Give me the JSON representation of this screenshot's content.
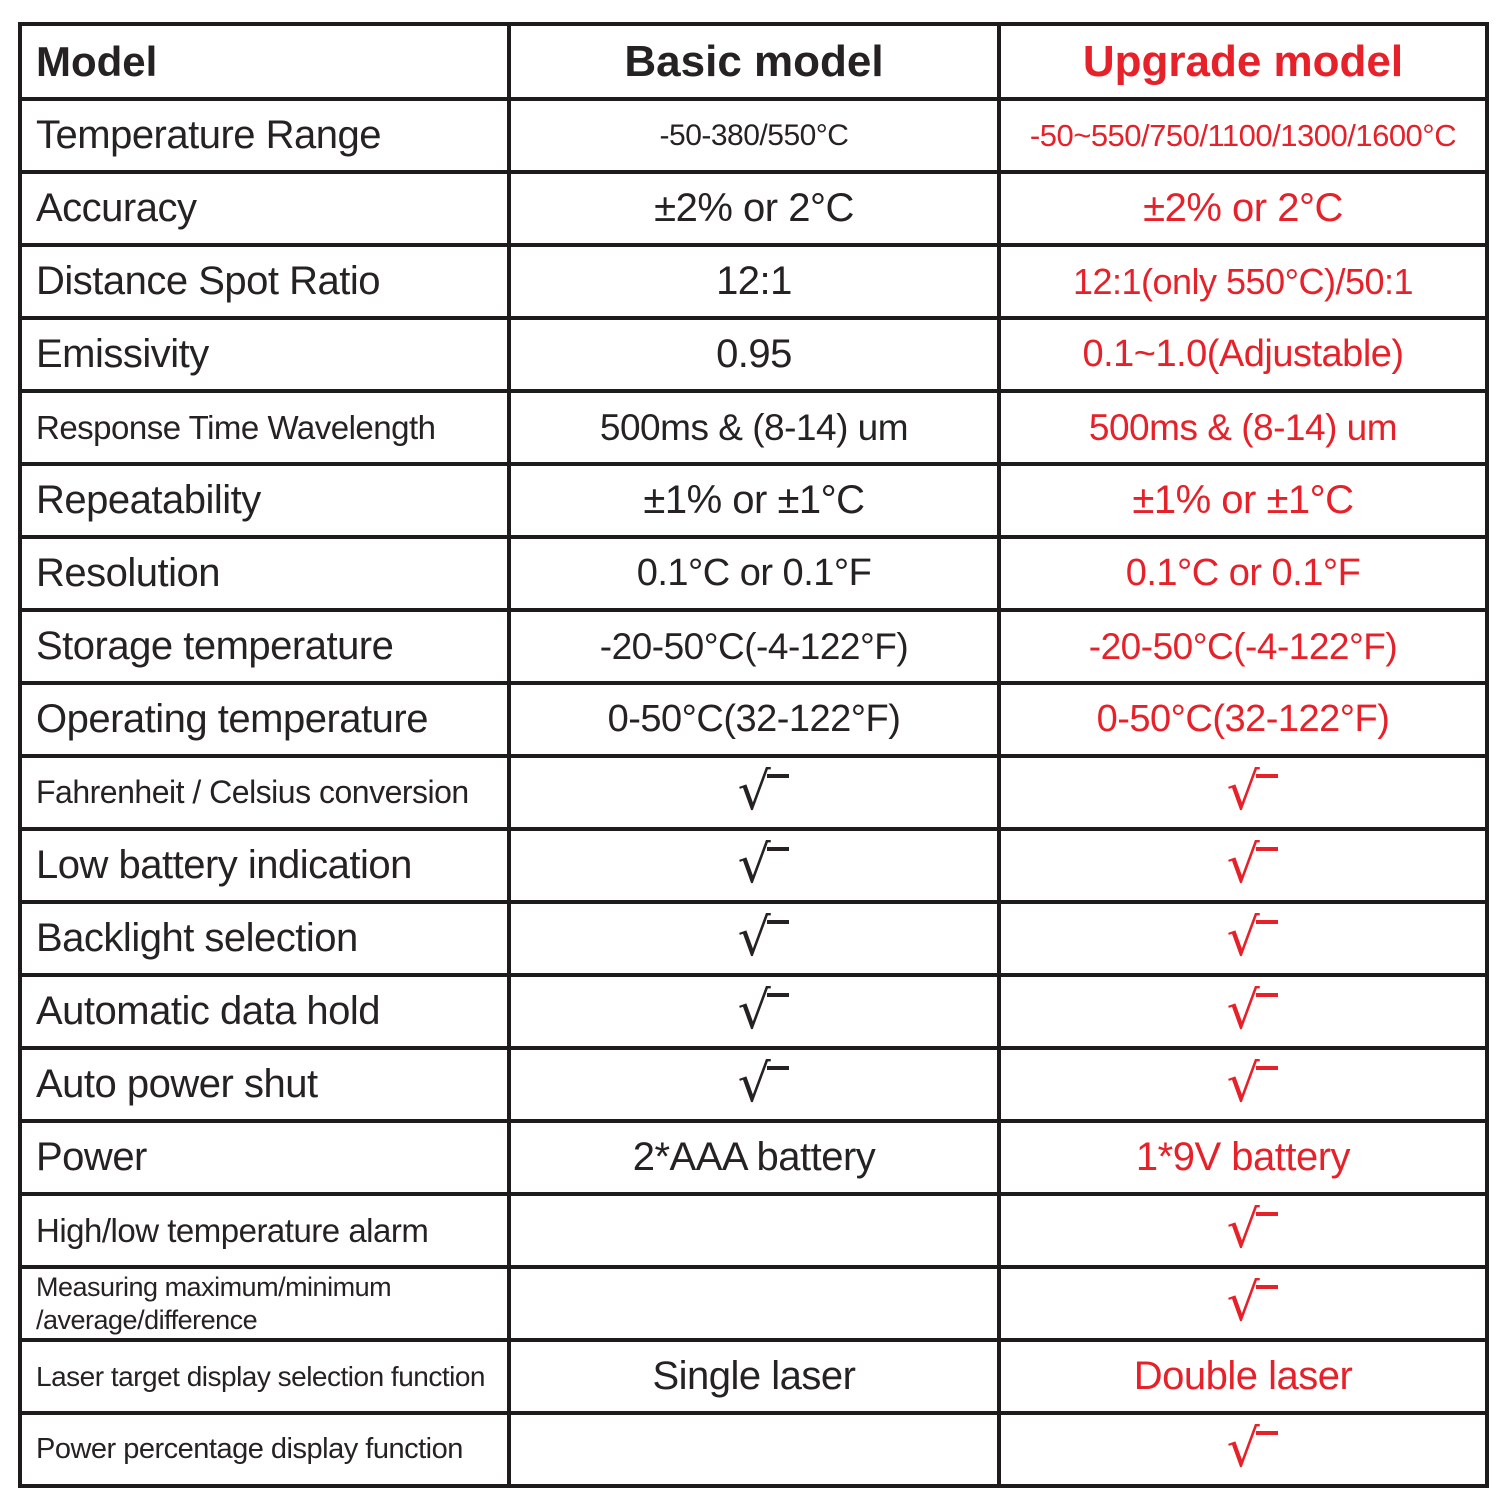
{
  "colors": {
    "accent_red": "#e62129",
    "text_black": "#262223",
    "grid_line": "#1d1b1c"
  },
  "check_symbol": "√",
  "header": {
    "model": "Model",
    "basic": "Basic model",
    "upgrade": "Upgrade model"
  },
  "rows": [
    {
      "label": "Temperature Range",
      "basic": "-50-380/550°C",
      "upgrade": "-50~550/750/1100/1300/1600°C"
    },
    {
      "label": "Accuracy",
      "basic": "±2% or 2°C",
      "upgrade": "±2% or 2°C"
    },
    {
      "label": "Distance Spot Ratio",
      "basic": "12:1",
      "upgrade": "12:1(only 550°C)/50:1"
    },
    {
      "label": "Emissivity",
      "basic": "0.95",
      "upgrade": "0.1~1.0(Adjustable)"
    },
    {
      "label": "Response Time Wavelength",
      "basic": "500ms & (8-14) um",
      "upgrade": "500ms & (8-14) um"
    },
    {
      "label": "Repeatability",
      "basic": "±1% or ±1°C",
      "upgrade": "±1% or ±1°C"
    },
    {
      "label": "Resolution",
      "basic": "0.1°C or 0.1°F",
      "upgrade": "0.1°C or 0.1°F"
    },
    {
      "label": "Storage temperature",
      "basic": "-20-50°C(-4-122°F)",
      "upgrade": "-20-50°C(-4-122°F)"
    },
    {
      "label": "Operating temperature",
      "basic": "0-50°C(32-122°F)",
      "upgrade": "0-50°C(32-122°F)"
    },
    {
      "label": "Fahrenheit / Celsius conversion",
      "basic": "√",
      "upgrade": "√"
    },
    {
      "label": "Low battery indication",
      "basic": "√",
      "upgrade": "√"
    },
    {
      "label": "Backlight selection",
      "basic": "√",
      "upgrade": "√"
    },
    {
      "label": "Automatic data hold",
      "basic": "√",
      "upgrade": "√"
    },
    {
      "label": "Auto power shut",
      "basic": "√",
      "upgrade": "√"
    },
    {
      "label": "Power",
      "basic": "2*AAA battery",
      "upgrade": "1*9V battery"
    },
    {
      "label": "High/low temperature alarm",
      "basic": "",
      "upgrade": "√"
    },
    {
      "label": "Measuring maximum/minimum",
      "label2": "/average/difference",
      "basic": "",
      "upgrade": "√"
    },
    {
      "label": "Laser target display selection function",
      "basic": "Single laser",
      "upgrade": "Double laser"
    },
    {
      "label": "Power percentage display function",
      "basic": "",
      "upgrade": "√"
    }
  ]
}
